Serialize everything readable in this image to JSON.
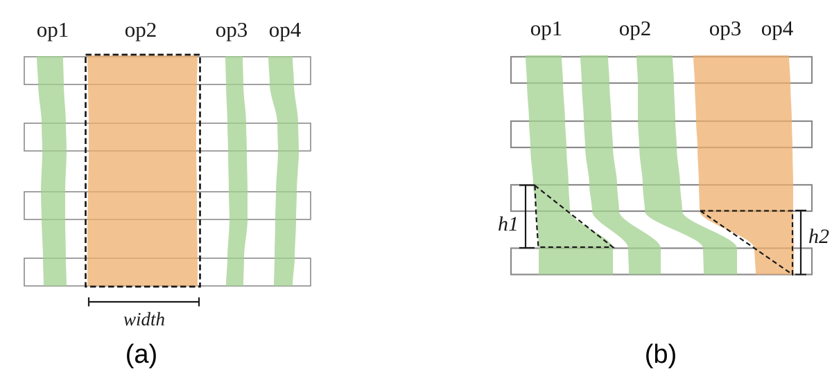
{
  "panel_a": {
    "caption": "(a)",
    "column_labels": [
      "op1",
      "op2",
      "op3",
      "op4"
    ],
    "width_label": "width"
  },
  "panel_b": {
    "caption": "(b)",
    "column_labels": [
      "op1",
      "op2",
      "op3",
      "op4"
    ],
    "h1_label": "h1",
    "h2_label": "h2"
  },
  "colors": {
    "ribbon_green": "#a2d08f",
    "ribbon_orange": "#edaf6c",
    "bar_border": "#8a8a8a",
    "dash_line": "#1a1a1a",
    "text": "#1a1a1a",
    "background": "#ffffff"
  }
}
